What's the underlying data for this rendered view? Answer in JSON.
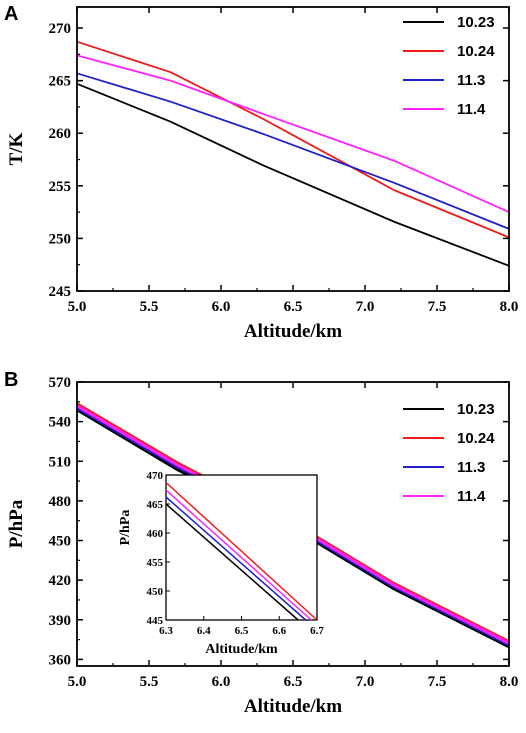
{
  "chart_data": [
    {
      "panel": "A",
      "type": "line",
      "xlabel": "Altitude/km",
      "ylabel": "T/K",
      "xlim": [
        5.0,
        8.0
      ],
      "ylim": [
        245,
        272
      ],
      "xticks": [
        "5.0",
        "5.5",
        "6.0",
        "6.5",
        "7.0",
        "7.5",
        "8.0"
      ],
      "yticks": [
        "245",
        "250",
        "255",
        "260",
        "265",
        "270"
      ],
      "legend_position": "top-right",
      "series": [
        {
          "name": "10.23",
          "color": "#000000",
          "x": [
            5.0,
            5.65,
            6.3,
            7.2,
            8.0
          ],
          "y": [
            264.7,
            261.1,
            256.9,
            251.6,
            247.4
          ]
        },
        {
          "name": "10.24",
          "color": "#ee1c1c",
          "x": [
            5.0,
            5.65,
            6.3,
            7.2,
            8.0
          ],
          "y": [
            268.7,
            265.8,
            261.3,
            254.6,
            250.1
          ]
        },
        {
          "name": "11.3",
          "color": "#2020c8",
          "x": [
            5.0,
            5.65,
            6.3,
            7.2,
            8.0
          ],
          "y": [
            265.7,
            263.0,
            259.9,
            255.3,
            250.9
          ]
        },
        {
          "name": "11.4",
          "color": "#ff22ff",
          "x": [
            5.0,
            5.65,
            6.3,
            7.2,
            8.0
          ],
          "y": [
            267.4,
            265.0,
            261.8,
            257.4,
            252.5
          ]
        }
      ]
    },
    {
      "panel": "B",
      "type": "line",
      "xlabel": "Altitude/km",
      "ylabel": "P/hPa",
      "xlim": [
        5.0,
        8.0
      ],
      "ylim": [
        355,
        570
      ],
      "xticks": [
        "5.0",
        "5.5",
        "6.0",
        "6.5",
        "7.0",
        "7.5",
        "8.0"
      ],
      "yticks": [
        "360",
        "390",
        "420",
        "450",
        "480",
        "510",
        "540",
        "570"
      ],
      "legend_position": "top-right",
      "series": [
        {
          "name": "10.23",
          "color": "#000000",
          "x": [
            5.0,
            5.7,
            6.5,
            7.2,
            8.0
          ],
          "y": [
            549,
            503.5,
            459.5,
            413.5,
            369.5
          ]
        },
        {
          "name": "10.24",
          "color": "#ee1c1c",
          "x": [
            5.0,
            5.7,
            6.5,
            7.2,
            8.0
          ],
          "y": [
            553.5,
            508.5,
            463.5,
            417.5,
            373.5
          ]
        },
        {
          "name": "11.3",
          "color": "#2020c8",
          "x": [
            5.0,
            5.7,
            6.5,
            7.2,
            8.0
          ],
          "y": [
            550.5,
            505.5,
            461.0,
            415.0,
            371.0
          ]
        },
        {
          "name": "11.4",
          "color": "#ff22ff",
          "x": [
            5.0,
            5.7,
            6.5,
            7.2,
            8.0
          ],
          "y": [
            552.0,
            507.0,
            462.3,
            416.3,
            372.3
          ]
        }
      ],
      "inset": {
        "xlabel": "Altitude/km",
        "ylabel": "P/hPa",
        "xlim": [
          6.3,
          6.7
        ],
        "ylim": [
          445,
          470
        ],
        "xticks": [
          "6.3",
          "6.4",
          "6.5",
          "6.6",
          "6.7"
        ],
        "yticks": [
          "445",
          "450",
          "455",
          "460",
          "465",
          "470"
        ],
        "series": [
          {
            "name": "10.23",
            "color": "#000000",
            "x": [
              6.3,
              6.65
            ],
            "y": [
              465.0,
              445.0
            ]
          },
          {
            "name": "11.3",
            "color": "#2020c8",
            "x": [
              6.3,
              6.67
            ],
            "y": [
              466.2,
              445.0
            ]
          },
          {
            "name": "11.4",
            "color": "#ff22ff",
            "x": [
              6.3,
              6.685
            ],
            "y": [
              467.4,
              445.0
            ]
          },
          {
            "name": "10.24",
            "color": "#ee1c1c",
            "x": [
              6.3,
              6.7
            ],
            "y": [
              468.7,
              445.0
            ]
          }
        ]
      }
    }
  ],
  "panels": {
    "a_letter": "A",
    "b_letter": "B"
  }
}
